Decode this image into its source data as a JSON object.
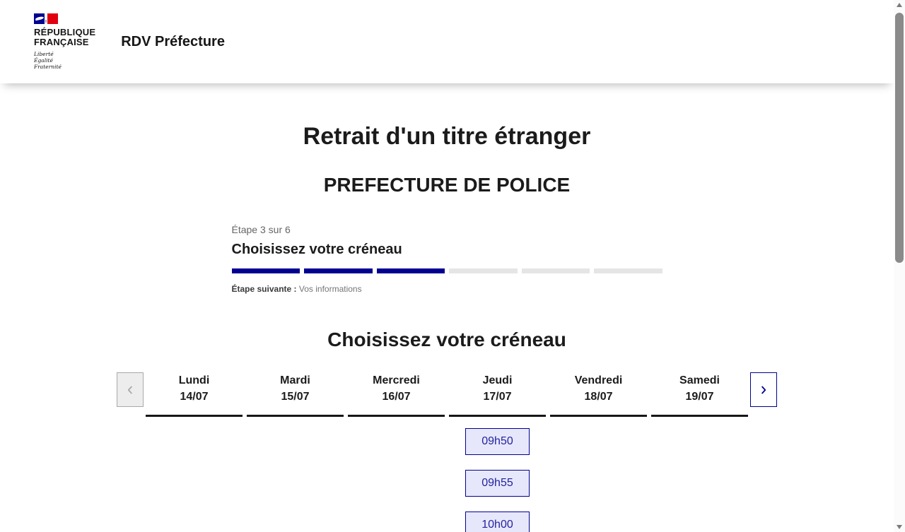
{
  "header": {
    "brand": {
      "name_line1": "RÉPUBLIQUE",
      "name_line2": "FRANÇAISE",
      "motto_line1": "Liberté",
      "motto_line2": "Égalité",
      "motto_line3": "Fraternité"
    },
    "app_title": "RDV Préfecture"
  },
  "main": {
    "page_title": "Retrait d'un titre étranger",
    "org_title": "PREFECTURE DE POLICE",
    "stepper": {
      "step_count_label": "Étape 3 sur 6",
      "current_step": 3,
      "total_steps": 6,
      "step_title": "Choisissez votre créneau",
      "next_step_label": "Étape suivante :",
      "next_step_value": "Vos informations"
    },
    "section_title": "Choisissez votre créneau",
    "calendar": {
      "prev_button_icon": "chevron-left-icon",
      "next_button_icon": "chevron-right-icon",
      "days": [
        {
          "name": "Lundi",
          "date": "14/07",
          "slots": []
        },
        {
          "name": "Mardi",
          "date": "15/07",
          "slots": []
        },
        {
          "name": "Mercredi",
          "date": "16/07",
          "slots": []
        },
        {
          "name": "Jeudi",
          "date": "17/07",
          "slots": [
            "09h50",
            "09h55",
            "10h00"
          ]
        },
        {
          "name": "Vendredi",
          "date": "18/07",
          "slots": []
        },
        {
          "name": "Samedi",
          "date": "19/07",
          "slots": []
        }
      ]
    }
  },
  "colors": {
    "accent_blue": "#000091",
    "flag_red": "#e1000f",
    "slot_background": "#e7e7fb",
    "progress_filled": "#000091",
    "progress_empty": "#e5e5e5",
    "text_primary": "#1b1b1b",
    "text_muted": "#757575"
  }
}
